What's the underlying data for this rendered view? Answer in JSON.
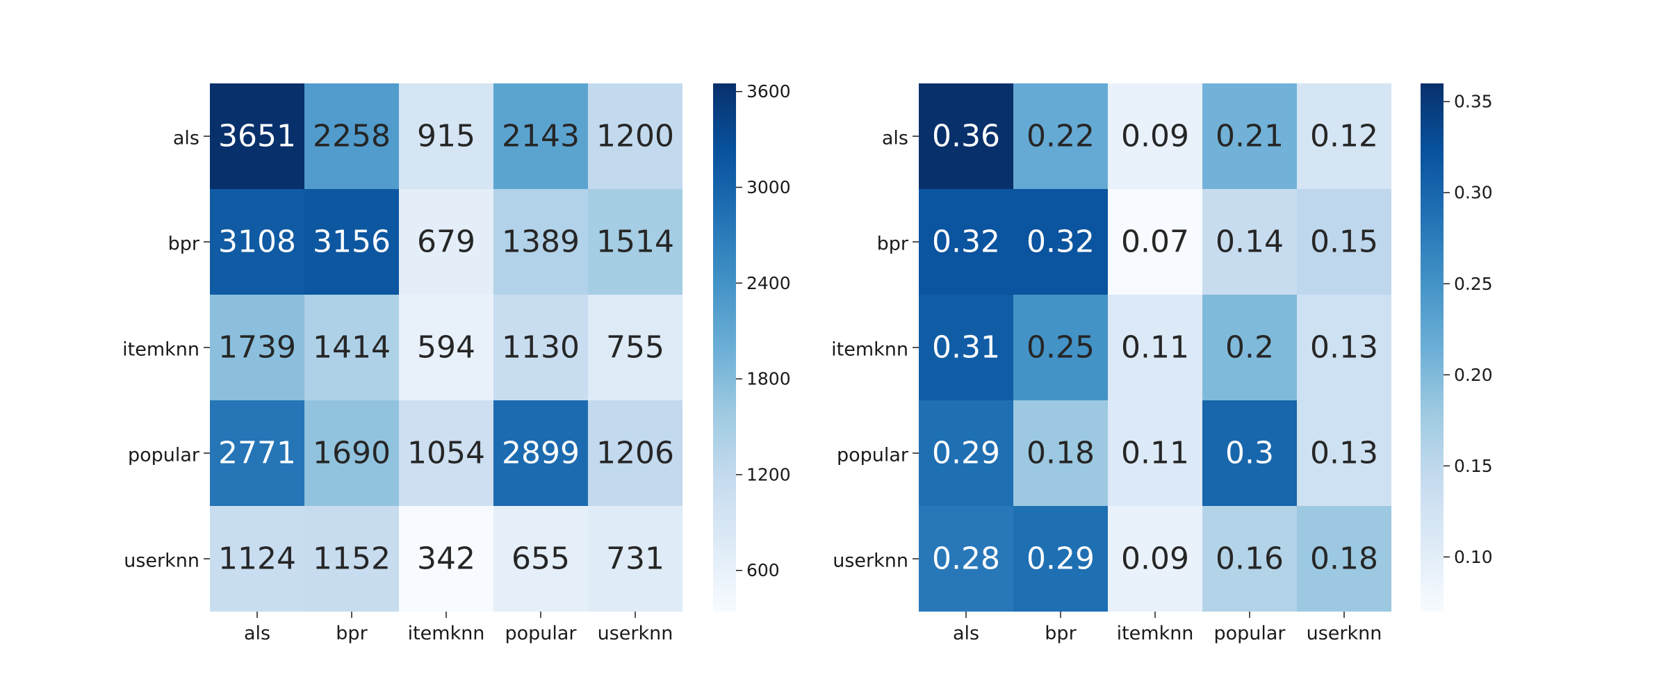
{
  "chart_data": [
    {
      "type": "heatmap",
      "colormap": "Blues",
      "rows": [
        "als",
        "bpr",
        "itemknn",
        "popular",
        "userknn"
      ],
      "columns": [
        "als",
        "bpr",
        "itemknn",
        "popular",
        "userknn"
      ],
      "values": [
        [
          3651,
          2258,
          915,
          2143,
          1200
        ],
        [
          3108,
          3156,
          679,
          1389,
          1514
        ],
        [
          1739,
          1414,
          594,
          1130,
          755
        ],
        [
          2771,
          1690,
          1054,
          2899,
          1206
        ],
        [
          1124,
          1152,
          342,
          655,
          731
        ]
      ],
      "cell_labels": [
        [
          "3651",
          "2258",
          "915",
          "2143",
          "1200"
        ],
        [
          "3108",
          "3156",
          "679",
          "1389",
          "1514"
        ],
        [
          "1739",
          "1414",
          "594",
          "1130",
          "755"
        ],
        [
          "2771",
          "1690",
          "1054",
          "2899",
          "1206"
        ],
        [
          "1124",
          "1152",
          "342",
          "655",
          "731"
        ]
      ],
      "vmin": 342,
      "vmax": 3651,
      "colorbar_ticks": [
        600,
        1200,
        1800,
        2400,
        3000,
        3600
      ],
      "colorbar_tick_labels": [
        "600",
        "1200",
        "1800",
        "2400",
        "3000",
        "3600"
      ]
    },
    {
      "type": "heatmap",
      "colormap": "Blues",
      "rows": [
        "als",
        "bpr",
        "itemknn",
        "popular",
        "userknn"
      ],
      "columns": [
        "als",
        "bpr",
        "itemknn",
        "popular",
        "userknn"
      ],
      "values": [
        [
          0.36,
          0.22,
          0.09,
          0.21,
          0.12
        ],
        [
          0.32,
          0.32,
          0.07,
          0.14,
          0.15
        ],
        [
          0.31,
          0.25,
          0.11,
          0.2,
          0.13
        ],
        [
          0.29,
          0.18,
          0.11,
          0.3,
          0.13
        ],
        [
          0.28,
          0.29,
          0.09,
          0.16,
          0.18
        ]
      ],
      "cell_labels": [
        [
          "0.36",
          "0.22",
          "0.09",
          "0.21",
          "0.12"
        ],
        [
          "0.32",
          "0.32",
          "0.07",
          "0.14",
          "0.15"
        ],
        [
          "0.31",
          "0.25",
          "0.11",
          "0.2",
          "0.13"
        ],
        [
          "0.29",
          "0.18",
          "0.11",
          "0.3",
          "0.13"
        ],
        [
          "0.28",
          "0.29",
          "0.09",
          "0.16",
          "0.18"
        ]
      ],
      "vmin": 0.07,
      "vmax": 0.36,
      "colorbar_ticks": [
        0.1,
        0.15,
        0.2,
        0.25,
        0.3,
        0.35
      ],
      "colorbar_tick_labels": [
        "0.10",
        "0.15",
        "0.20",
        "0.25",
        "0.30",
        "0.35"
      ]
    }
  ]
}
